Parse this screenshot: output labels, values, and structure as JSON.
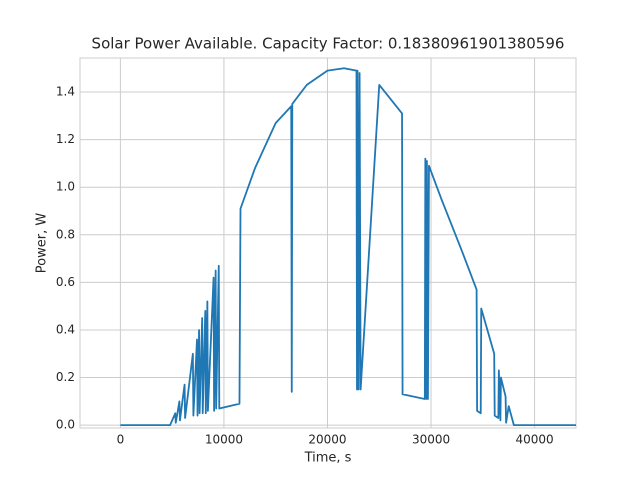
{
  "chart_data": {
    "type": "line",
    "title": "Solar Power Available. Capacity Factor: 0.18380961901380596",
    "x_label": "Time, s",
    "y_label": "Power, W",
    "color": "#1f77b4",
    "grid": true,
    "xlim": [
      -3900,
      44000
    ],
    "ylim": [
      -0.012,
      1.543
    ],
    "xticks": [
      0,
      10000,
      20000,
      30000,
      40000
    ],
    "yticks": [
      {
        "value": 0,
        "label": "0.0"
      },
      0.2,
      0.4,
      0.6,
      0.8,
      {
        "value": 1,
        "label": "1.0"
      },
      1.2,
      1.4
    ],
    "x": [
      0,
      4800,
      5300,
      5350,
      5700,
      5750,
      6200,
      6250,
      7000,
      7050,
      7400,
      7450,
      7600,
      7650,
      7900,
      7950,
      8200,
      8250,
      8400,
      8450,
      9000,
      9050,
      9200,
      9250,
      9500,
      9550,
      11500,
      11600,
      13000,
      15000,
      16500,
      16550,
      16600,
      18000,
      20000,
      21600,
      22800,
      22850,
      22900,
      23000,
      23100,
      23200,
      25000,
      27200,
      27250,
      29400,
      29450,
      29550,
      29600,
      29700,
      29800,
      31000,
      33000,
      34400,
      34450,
      34800,
      34850,
      36100,
      36150,
      36500,
      36550,
      36700,
      36750,
      37200,
      37250,
      37500,
      38000,
      44000
    ],
    "values": [
      0,
      0,
      0.05,
      0.01,
      0.1,
      0.02,
      0.17,
      0.03,
      0.3,
      0.04,
      0.36,
      0.04,
      0.4,
      0.05,
      0.45,
      0.05,
      0.48,
      0.05,
      0.52,
      0.06,
      0.62,
      0.06,
      0.65,
      0.07,
      0.67,
      0.07,
      0.09,
      0.91,
      1.08,
      1.27,
      1.34,
      0.14,
      1.35,
      1.43,
      1.49,
      1.5,
      1.49,
      0.15,
      1.49,
      0.15,
      1.48,
      0.15,
      1.43,
      1.31,
      0.13,
      0.11,
      1.12,
      0.11,
      1.11,
      0.11,
      1.09,
      0.95,
      0.73,
      0.57,
      0.06,
      0.05,
      0.49,
      0.3,
      0.04,
      0.03,
      0.23,
      0.02,
      0.2,
      0.12,
      0.01,
      0.08,
      0,
      0
    ]
  }
}
